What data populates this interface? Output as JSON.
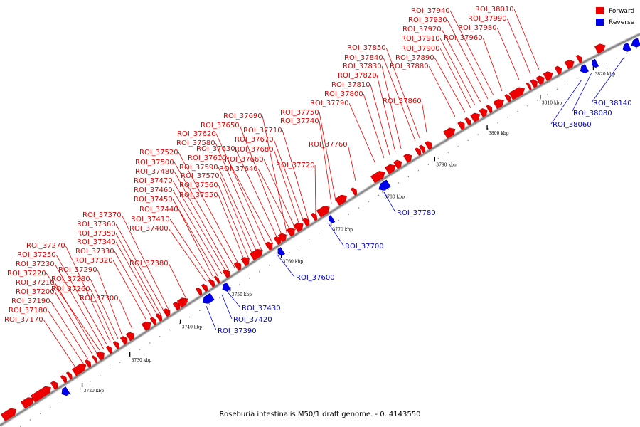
{
  "caption": "Roseburia intestinalis M50/1 draft genome. - 0..4143550",
  "legend": [
    {
      "label": "Forward",
      "color": "#ee0000"
    },
    {
      "label": "Reverse",
      "color": "#0000ee"
    }
  ],
  "colors": {
    "forward": "#ee0000",
    "reverse": "#0000ee",
    "backbone": "#888888",
    "forward_label": "#e00000",
    "reverse_label": "#0000d0"
  },
  "ticks": [
    "3720 kbp",
    "3730 kbp",
    "3740 kbp",
    "3750 kbp",
    "3760 kbp",
    "3770 kbp",
    "3780 kbp",
    "3790 kbp",
    "3800 kbp",
    "3810 kbp",
    "3820 kbp"
  ],
  "forward_labels": [
    "ROI_37170",
    "ROI_37180",
    "ROI_37190",
    "ROI_37200",
    "ROI_37210",
    "ROI_37220",
    "ROI_37230",
    "ROI_37250",
    "ROI_37270",
    "ROI_37260",
    "ROI_37280",
    "ROI_37290",
    "ROI_37300",
    "ROI_37320",
    "ROI_37330",
    "ROI_37340",
    "ROI_37350",
    "ROI_37360",
    "ROI_37370",
    "ROI_37380",
    "ROI_37400",
    "ROI_37410",
    "ROI_37440",
    "ROI_37450",
    "ROI_37460",
    "ROI_37470",
    "ROI_37480",
    "ROI_37500",
    "ROI_37520",
    "ROI_37550",
    "ROI_37560",
    "ROI_37570",
    "ROI_37590",
    "ROI_37580",
    "ROI_37620",
    "ROI_37610",
    "ROI_37630",
    "ROI_37650",
    "ROI_37690",
    "ROI_37640",
    "ROI_37660",
    "ROI_37680",
    "ROI_37670",
    "ROI_37710",
    "ROI_37720",
    "ROI_37740",
    "ROI_37750",
    "ROI_37760",
    "ROI_37790",
    "ROI_37800",
    "ROI_37810",
    "ROI_37820",
    "ROI_37830",
    "ROI_37840",
    "ROI_37850",
    "ROI_37860",
    "ROI_37880",
    "ROI_37890",
    "ROI_37900",
    "ROI_37910",
    "ROI_37920",
    "ROI_37930",
    "ROI_37940",
    "ROI_37960",
    "ROI_37980",
    "ROI_37990",
    "ROI_38010"
  ],
  "reverse_labels": [
    "ROI_37390",
    "ROI_37420",
    "ROI_37430",
    "ROI_37600",
    "ROI_37700",
    "ROI_37780",
    "ROI_38060",
    "ROI_38080",
    "ROI_38140"
  ]
}
